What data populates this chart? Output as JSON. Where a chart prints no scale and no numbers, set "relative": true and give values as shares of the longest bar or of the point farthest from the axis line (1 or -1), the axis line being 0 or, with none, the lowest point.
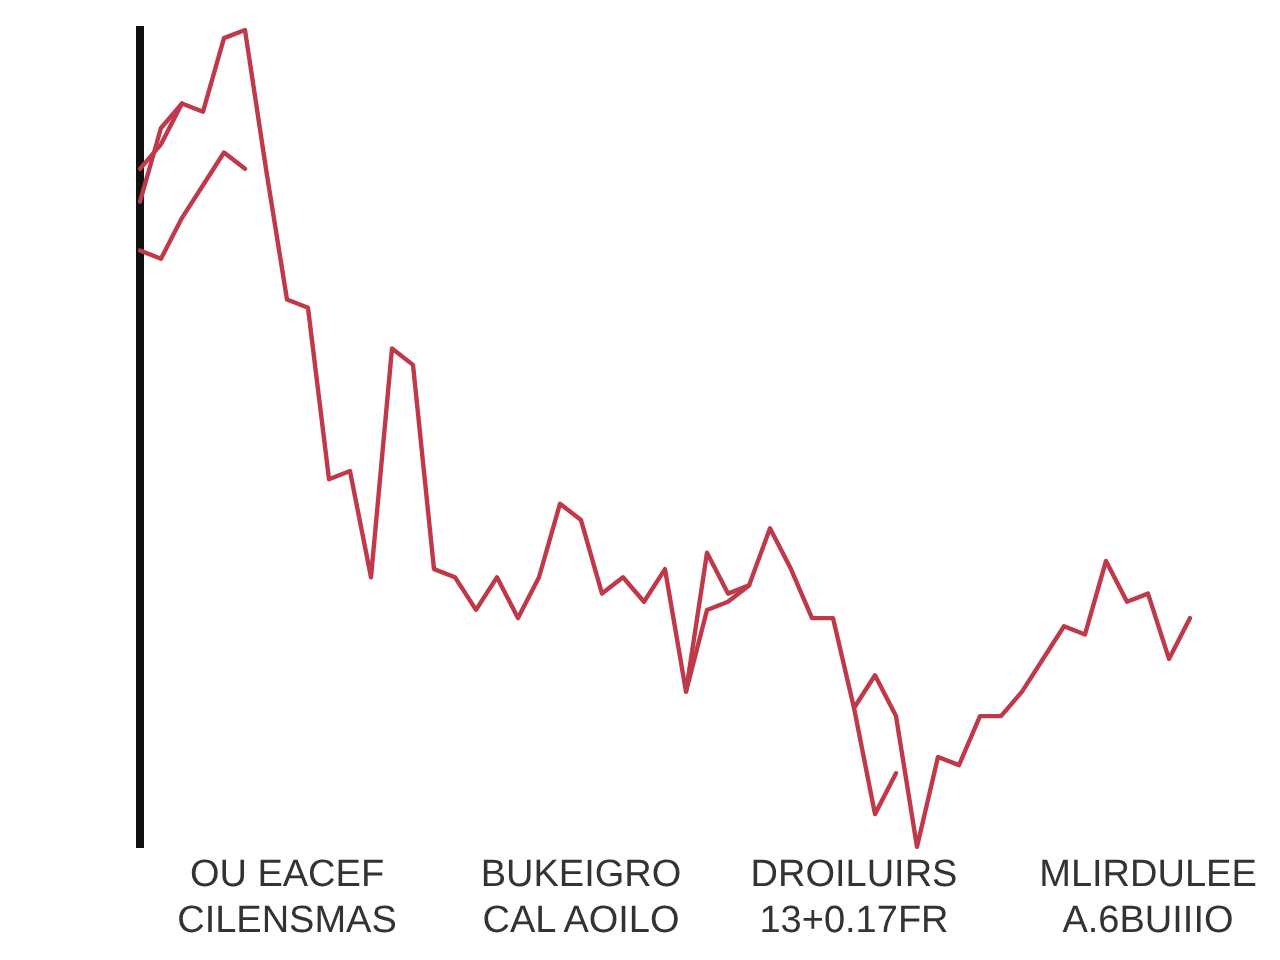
{
  "chart_data": {
    "type": "line",
    "relative": true,
    "grid": false,
    "legend": false,
    "marker": "none",
    "line_style": "solid",
    "categories": [
      null,
      null,
      null,
      null,
      null,
      null,
      null,
      "OU EACEF\nCILENSMAS",
      null,
      null,
      null,
      null,
      null,
      null,
      null,
      null,
      null,
      null,
      null,
      null,
      null,
      "BUKEIGRO\nCAL AOILO",
      null,
      null,
      null,
      null,
      null,
      null,
      null,
      null,
      null,
      null,
      null,
      null,
      "DROILUIRS\n13+0.17FR",
      null,
      null,
      null,
      null,
      null,
      null,
      null,
      null,
      null,
      null,
      null,
      null,
      null,
      "MLIRDULEE\nA.6BUIIIO",
      null,
      null
    ],
    "series": [
      {
        "color": "#c0394a",
        "values": [
          0.83,
          0.86,
          0.91,
          0.9,
          0.99,
          1,
          0.83,
          0.67,
          0.66,
          0.45,
          0.46,
          0.33,
          0.61,
          0.59,
          0.34,
          0.33,
          0.29,
          0.33,
          0.28,
          0.33,
          0.42,
          0.4,
          0.31,
          0.33,
          0.3,
          0.34,
          0.19,
          0.36,
          0.31,
          0.32,
          0.39,
          0.34,
          0.28,
          0.28,
          0.17,
          0.21,
          0.16,
          0,
          0.11,
          0.1,
          0.16,
          0.16,
          0.19,
          0.23,
          0.27,
          0.26,
          0.35,
          0.3,
          0.31,
          0.23,
          0.28
        ]
      },
      {
        "color": "#c0394a",
        "values": [
          0.73,
          0.72,
          0.77,
          0.81,
          0.85,
          0.83,
          null,
          null,
          null,
          null,
          null,
          null,
          null,
          null,
          null,
          null,
          null,
          null,
          null,
          null,
          null,
          null,
          null,
          null,
          null,
          null,
          0.19,
          0.29,
          0.3,
          0.32,
          null,
          null,
          null,
          null,
          0.17,
          0.04,
          0.09,
          null,
          null,
          null,
          null,
          null,
          null,
          null,
          null,
          null,
          null,
          null,
          null,
          null,
          null
        ]
      },
      {
        "color": "#c0394a",
        "values": [
          0.79,
          0.88,
          0.91,
          null,
          null,
          null,
          null,
          null,
          null,
          null,
          null,
          null,
          null,
          null,
          null,
          null,
          null,
          null,
          null,
          null,
          null,
          null,
          null,
          null,
          null,
          null,
          null,
          null,
          null,
          null,
          null,
          null,
          null,
          null,
          null,
          null,
          null,
          null,
          null,
          null,
          null,
          null,
          null,
          null,
          null,
          null,
          null,
          null,
          null,
          null,
          null
        ]
      }
    ]
  }
}
